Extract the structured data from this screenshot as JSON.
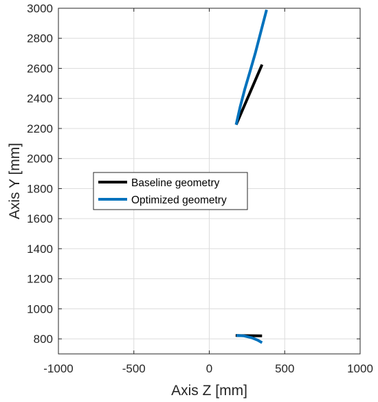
{
  "chart_data": {
    "type": "line",
    "xlabel": "Axis Z [mm]",
    "ylabel": "Axis Y [mm]",
    "xlim": [
      -1000,
      1000
    ],
    "ylim": [
      700,
      3000
    ],
    "xticks": [
      -1000,
      -500,
      0,
      500,
      1000
    ],
    "yticks": [
      800,
      1000,
      1200,
      1400,
      1600,
      1800,
      2000,
      2200,
      2400,
      2600,
      2800,
      3000
    ],
    "grid": true,
    "legend_position": "center-left",
    "series": [
      {
        "name": "Baseline geometry",
        "color": "#000000",
        "segments": [
          [
            {
              "x": 178,
              "y": 2225
            },
            {
              "x": 350,
              "y": 2625
            }
          ],
          [
            {
              "x": 175,
              "y": 822
            },
            {
              "x": 350,
              "y": 820
            }
          ]
        ]
      },
      {
        "name": "Optimized geometry",
        "color": "#0072BD",
        "segments": [
          [
            {
              "x": 178,
              "y": 2225
            },
            {
              "x": 205,
              "y": 2345
            },
            {
              "x": 235,
              "y": 2460
            },
            {
              "x": 270,
              "y": 2580
            },
            {
              "x": 305,
              "y": 2700
            },
            {
              "x": 345,
              "y": 2855
            },
            {
              "x": 380,
              "y": 2990
            }
          ],
          [
            {
              "x": 180,
              "y": 823
            },
            {
              "x": 230,
              "y": 820
            },
            {
              "x": 280,
              "y": 808
            },
            {
              "x": 320,
              "y": 792
            },
            {
              "x": 350,
              "y": 775
            }
          ]
        ]
      }
    ]
  }
}
